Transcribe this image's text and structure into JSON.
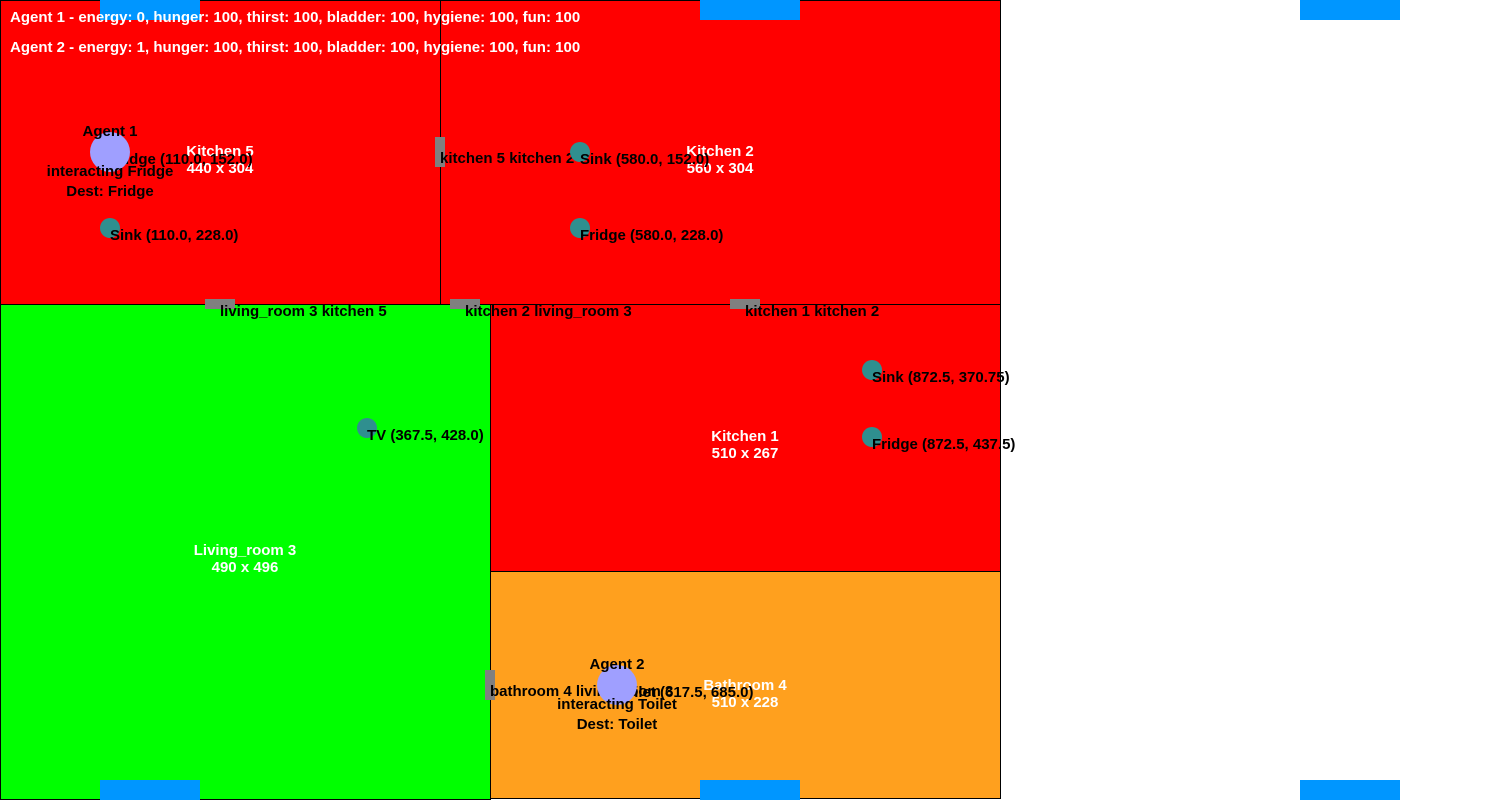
{
  "colors": {
    "kitchen": "#ff0000",
    "living_room": "#00ff00",
    "bathroom": "#ffa01e",
    "edge_marker": "#0096ff",
    "door": "#808080",
    "object": "#2f8f8f",
    "agent": "#9f9fff"
  },
  "status": {
    "agent1": "Agent 1 - energy: 0, hunger: 100, thirst: 100, bladder: 100, hygiene: 100, fun: 100",
    "agent2": "Agent 2 - energy: 1, hunger: 100, thirst: 100, bladder: 100, hygiene: 100, fun: 100"
  },
  "rooms": {
    "kitchen5": {
      "name": "Kitchen 5",
      "size": "440 x 304"
    },
    "kitchen2": {
      "name": "Kitchen 2",
      "size": "560 x 304"
    },
    "kitchen1": {
      "name": "Kitchen 1",
      "size": "510 x 267"
    },
    "living_room3": {
      "name": "Living_room 3",
      "size": "490 x 496"
    },
    "bathroom4": {
      "name": "Bathroom 4",
      "size": "510 x 228"
    }
  },
  "doors": {
    "k5_k2": "kitchen 5 kitchen 2",
    "lr3_k5": "living_room 3 kitchen 5",
    "k2_lr3": "kitchen 2 living_room 3",
    "k1_k2": "kitchen 1 kitchen 2",
    "b4_lr3": "bathroom 4 living_room 3"
  },
  "objects": {
    "k5_fridge": "Fridge (110.0, 152.0)",
    "k5_sink": "Sink (110.0, 228.0)",
    "k2_sink": "Sink (580.0, 152.0)",
    "k2_fridge": "Fridge (580.0, 228.0)",
    "k1_sink": "Sink (872.5, 370.75)",
    "k1_fridge": "Fridge (872.5, 437.5)",
    "lr3_tv": "TV (367.5, 428.0)",
    "b4_toilet": "Toilet (617.5, 685.0)"
  },
  "agents": {
    "agent1": {
      "name": "Agent 1",
      "state": "interacting Fridge",
      "dest": "Dest: Fridge"
    },
    "agent2": {
      "name": "Agent 2",
      "state": "interacting Toilet",
      "dest": "Dest: Toilet"
    }
  }
}
